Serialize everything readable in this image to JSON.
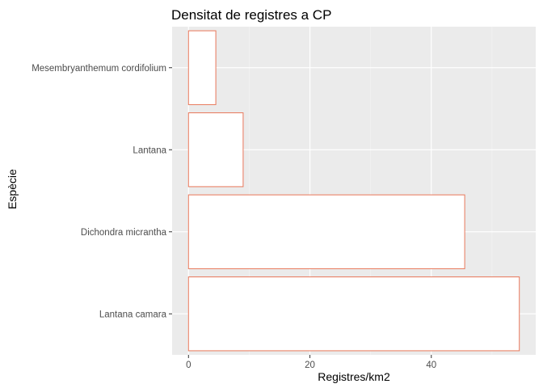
{
  "chart_data": {
    "type": "bar",
    "orientation": "horizontal",
    "title": "Densitat de registres a CP",
    "xlabel": "Registres/km2",
    "ylabel": "Espècie",
    "categories": [
      "Lantana camara",
      "Dichondra micrantha",
      "Lantana",
      "Mesembryanthemum cordifolium"
    ],
    "values": [
      54.5,
      45.5,
      9.0,
      4.5
    ],
    "xlim": [
      -2.7,
      57.2
    ],
    "xticks": [
      0,
      20,
      40
    ],
    "grid": true,
    "legend": "none",
    "colors": {
      "panel": "#ebebeb",
      "grid_major": "#ffffff",
      "grid_minor": "#f5f5f5",
      "bar_fill": "#ffffff",
      "bar_outline": "#e8775a"
    }
  }
}
